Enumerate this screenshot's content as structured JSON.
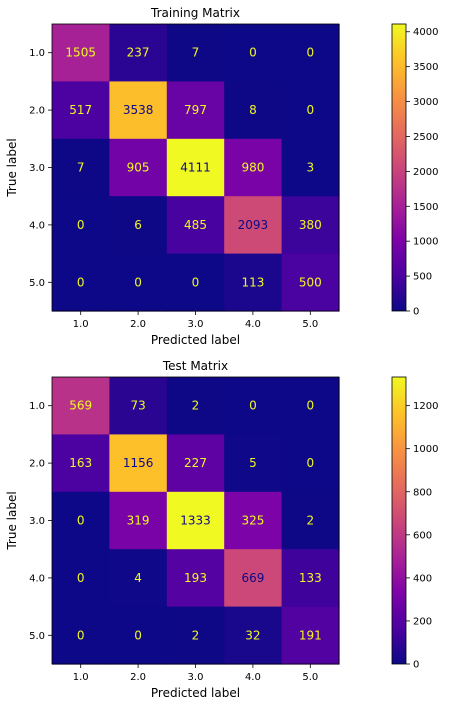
{
  "chart_data": [
    {
      "type": "heatmap",
      "title": "Training Matrix",
      "xlabel": "Predicted label",
      "ylabel": "True label",
      "x_categories": [
        "1.0",
        "2.0",
        "3.0",
        "4.0",
        "5.0"
      ],
      "y_categories": [
        "1.0",
        "2.0",
        "3.0",
        "4.0",
        "5.0"
      ],
      "values": [
        [
          1505,
          237,
          7,
          0,
          0
        ],
        [
          517,
          3538,
          797,
          8,
          0
        ],
        [
          7,
          905,
          4111,
          980,
          3
        ],
        [
          0,
          6,
          485,
          2093,
          380
        ],
        [
          0,
          0,
          0,
          113,
          500
        ]
      ],
      "colormap": "plasma",
      "colorbar": {
        "min": 0,
        "max": 4111,
        "ticks": [
          0,
          500,
          1000,
          1500,
          2000,
          2500,
          3000,
          3500,
          4000
        ],
        "tick_labels": [
          "0",
          "500",
          "1000",
          "1500",
          "2000",
          "2500",
          "3000",
          "3500",
          "4000"
        ]
      },
      "annotation_colors": {
        "light": "#f0f921",
        "dark": "#0d0887"
      }
    },
    {
      "type": "heatmap",
      "title": "Test Matrix",
      "xlabel": "Predicted label",
      "ylabel": "True label",
      "x_categories": [
        "1.0",
        "2.0",
        "3.0",
        "4.0",
        "5.0"
      ],
      "y_categories": [
        "1.0",
        "2.0",
        "3.0",
        "4.0",
        "5.0"
      ],
      "values": [
        [
          569,
          73,
          2,
          0,
          0
        ],
        [
          163,
          1156,
          227,
          5,
          0
        ],
        [
          0,
          319,
          1333,
          325,
          2
        ],
        [
          0,
          4,
          193,
          669,
          133
        ],
        [
          0,
          0,
          2,
          32,
          191
        ]
      ],
      "colormap": "plasma",
      "colorbar": {
        "min": 0,
        "max": 1333,
        "ticks": [
          0,
          200,
          400,
          600,
          800,
          1000,
          1200
        ],
        "tick_labels": [
          "0",
          "200",
          "400",
          "600",
          "800",
          "1000",
          "1200"
        ]
      },
      "annotation_colors": {
        "light": "#f0f921",
        "dark": "#0d0887"
      }
    }
  ]
}
